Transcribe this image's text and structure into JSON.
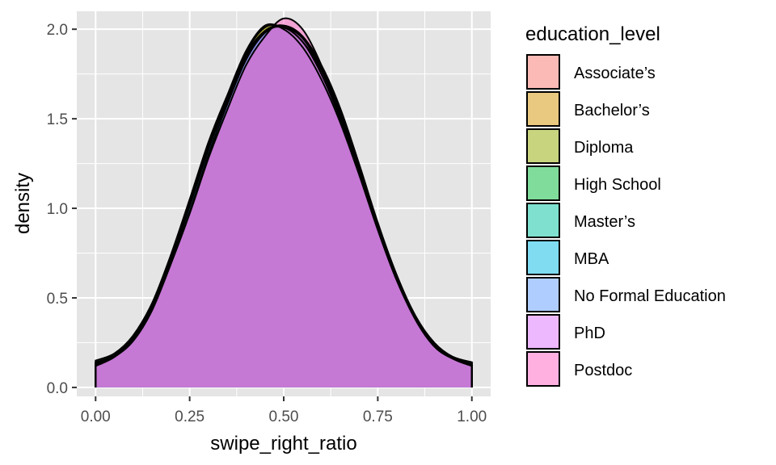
{
  "chart_data": {
    "type": "area",
    "subtype": "density",
    "xlabel": "swipe_right_ratio",
    "ylabel": "density",
    "xlim": [
      -0.05,
      1.05
    ],
    "ylim": [
      -0.05,
      2.1
    ],
    "x_ticks": [
      "0.00",
      "0.25",
      "0.50",
      "0.75",
      "1.00"
    ],
    "y_ticks": [
      "0.0",
      "0.5",
      "1.0",
      "1.5",
      "2.0"
    ],
    "grid": true,
    "legend": {
      "title": "education_level",
      "placement": "right"
    },
    "panel_background": "#e5e5e5",
    "grid_color": "#ffffff",
    "outline_color": "#000000",
    "fill_opacity": 0.5,
    "x": [
      0.0,
      0.05,
      0.1,
      0.15,
      0.2,
      0.25,
      0.3,
      0.35,
      0.4,
      0.45,
      0.5,
      0.55,
      0.6,
      0.65,
      0.7,
      0.75,
      0.8,
      0.85,
      0.9,
      0.95,
      1.0
    ],
    "series": [
      {
        "name": "Associate’s",
        "color": "#F8766D",
        "values": [
          0.13,
          0.18,
          0.27,
          0.45,
          0.71,
          1.01,
          1.33,
          1.6,
          1.84,
          1.99,
          2.02,
          1.96,
          1.78,
          1.53,
          1.22,
          0.9,
          0.61,
          0.38,
          0.23,
          0.16,
          0.13
        ]
      },
      {
        "name": "Bachelor’s",
        "color": "#D39200",
        "values": [
          0.14,
          0.18,
          0.28,
          0.46,
          0.73,
          1.03,
          1.35,
          1.63,
          1.88,
          2.02,
          2.0,
          1.9,
          1.72,
          1.48,
          1.19,
          0.88,
          0.6,
          0.38,
          0.23,
          0.16,
          0.13
        ]
      },
      {
        "name": "Diploma",
        "color": "#93AA00",
        "values": [
          0.13,
          0.18,
          0.28,
          0.46,
          0.72,
          1.02,
          1.34,
          1.62,
          1.87,
          2.01,
          2.01,
          1.93,
          1.75,
          1.5,
          1.2,
          0.89,
          0.61,
          0.38,
          0.23,
          0.16,
          0.13
        ]
      },
      {
        "name": "High School",
        "color": "#00BA38",
        "values": [
          0.15,
          0.19,
          0.29,
          0.46,
          0.73,
          1.04,
          1.35,
          1.63,
          1.86,
          1.99,
          2.01,
          1.93,
          1.77,
          1.52,
          1.22,
          0.9,
          0.62,
          0.4,
          0.24,
          0.17,
          0.14
        ]
      },
      {
        "name": "Master’s",
        "color": "#00C19F",
        "values": [
          0.14,
          0.18,
          0.28,
          0.46,
          0.72,
          1.02,
          1.33,
          1.61,
          1.85,
          1.99,
          2.01,
          1.95,
          1.78,
          1.53,
          1.23,
          0.91,
          0.62,
          0.39,
          0.24,
          0.17,
          0.14
        ]
      },
      {
        "name": "MBA",
        "color": "#00B9E3",
        "values": [
          0.14,
          0.18,
          0.29,
          0.47,
          0.74,
          1.05,
          1.37,
          1.63,
          1.85,
          1.98,
          2.02,
          1.96,
          1.8,
          1.56,
          1.25,
          0.92,
          0.63,
          0.4,
          0.25,
          0.17,
          0.14
        ]
      },
      {
        "name": "No Formal Education",
        "color": "#619CFF",
        "values": [
          0.13,
          0.18,
          0.28,
          0.46,
          0.72,
          1.02,
          1.33,
          1.61,
          1.85,
          1.99,
          2.02,
          1.95,
          1.78,
          1.53,
          1.23,
          0.91,
          0.62,
          0.39,
          0.24,
          0.16,
          0.13
        ]
      },
      {
        "name": "PhD",
        "color": "#DB72FB",
        "values": [
          0.12,
          0.17,
          0.26,
          0.43,
          0.69,
          0.98,
          1.3,
          1.58,
          1.83,
          1.98,
          2.02,
          1.96,
          1.79,
          1.54,
          1.23,
          0.91,
          0.62,
          0.39,
          0.24,
          0.16,
          0.12
        ]
      },
      {
        "name": "Postdoc",
        "color": "#FF61C3",
        "values": [
          0.12,
          0.17,
          0.27,
          0.44,
          0.69,
          0.97,
          1.28,
          1.55,
          1.8,
          1.96,
          2.06,
          2.0,
          1.8,
          1.52,
          1.2,
          0.88,
          0.6,
          0.38,
          0.23,
          0.16,
          0.12
        ]
      }
    ]
  }
}
